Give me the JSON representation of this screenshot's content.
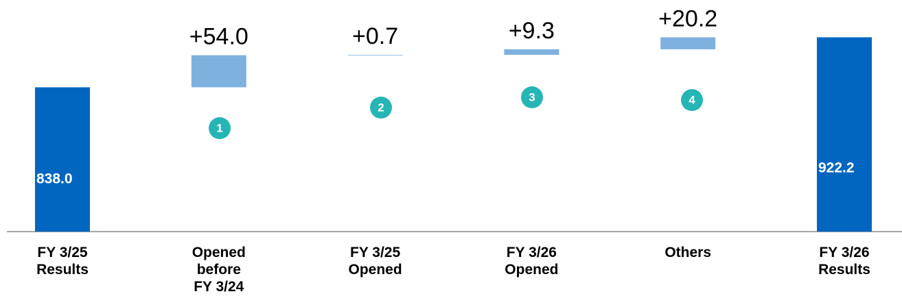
{
  "chart_data": {
    "type": "waterfall",
    "categories": [
      "FY 3/25\nResults",
      "Opened\nbefore\nFY 3/24",
      "FY 3/25\nOpened",
      "FY 3/26\nOpened",
      "Others",
      "FY 3/26\nResults"
    ],
    "values": [
      838.0,
      54.0,
      0.7,
      9.3,
      20.2,
      922.2
    ],
    "value_labels": [
      "838.0",
      "+54.0",
      "+0.7",
      "+9.3",
      "+20.2",
      "922.2"
    ],
    "colors": [
      "#0066c0",
      "#7fb1de",
      "#7fb1de",
      "#7fb1de",
      "#7fb1de",
      "#0066c0"
    ],
    "markers": [
      "1",
      "2",
      "3",
      "4"
    ],
    "ylim": [
      595,
      985
    ]
  }
}
